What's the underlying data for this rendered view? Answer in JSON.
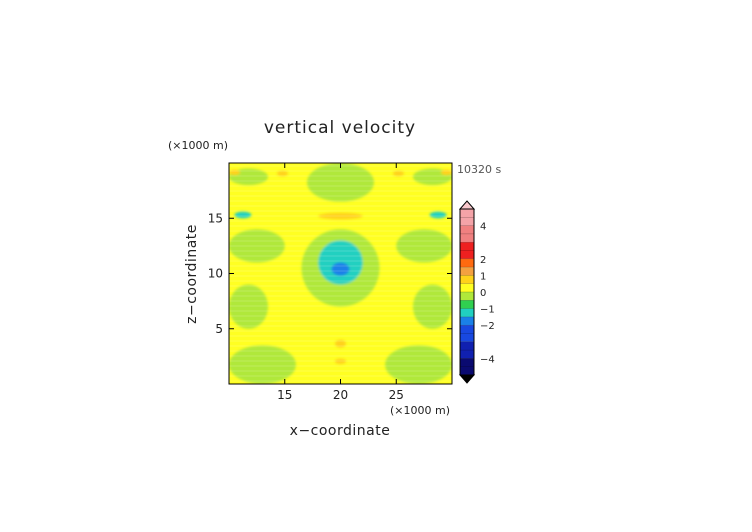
{
  "chart_data": {
    "type": "heatmap",
    "title": "vertical velocity",
    "xlabel": "x−coordinate",
    "ylabel": "z−coordinate",
    "x_unit": "(×1000 m)",
    "y_unit": "(×1000 m)",
    "time_label": "10320 s",
    "xlim": [
      10,
      30
    ],
    "ylim": [
      0,
      20
    ],
    "xticks": [
      15,
      20,
      25
    ],
    "yticks": [
      5,
      10,
      15
    ],
    "colorbar": {
      "ticks": [
        {
          "value": 4,
          "label": "4"
        },
        {
          "value": 2,
          "label": "2"
        },
        {
          "value": 1,
          "label": "1"
        },
        {
          "value": 0,
          "label": "0"
        },
        {
          "value": -1,
          "label": "−1"
        },
        {
          "value": -2,
          "label": "−2"
        },
        {
          "value": -4,
          "label": "−4"
        }
      ],
      "bands": [
        {
          "lo": 4,
          "hi": 5,
          "color": "#f4a3a8"
        },
        {
          "lo": 3,
          "hi": 4,
          "color": "#f08080"
        },
        {
          "lo": 2,
          "hi": 3,
          "color": "#ee2020"
        },
        {
          "lo": 1.5,
          "hi": 2,
          "color": "#ff6a10"
        },
        {
          "lo": 1,
          "hi": 1.5,
          "color": "#f4a040"
        },
        {
          "lo": 0.5,
          "hi": 1,
          "color": "#ffd21a"
        },
        {
          "lo": 0,
          "hi": 0.5,
          "color": "#ffff22"
        },
        {
          "lo": -0.5,
          "hi": 0,
          "color": "#b0e83a"
        },
        {
          "lo": -1,
          "hi": -0.5,
          "color": "#30d050"
        },
        {
          "lo": -1.5,
          "hi": -1,
          "color": "#20d0c0"
        },
        {
          "lo": -2,
          "hi": -1.5,
          "color": "#1a80e8"
        },
        {
          "lo": -3,
          "hi": -2,
          "color": "#1848e0"
        },
        {
          "lo": -4,
          "hi": -3,
          "color": "#1020b0"
        },
        {
          "lo": -5,
          "hi": -4,
          "color": "#0a0a70"
        }
      ],
      "over_color": "#f8c8cc",
      "under_color": "#000000"
    },
    "field": {
      "colors": {
        "positive": "#ffff22",
        "slight_negative": "#b0e83a",
        "weak_positive_spot": "#f4a040",
        "moderate_negative": "#20d0c0",
        "strong_negative": "#1a80e8"
      },
      "regions": [
        {
          "feature": "left_band_upper",
          "level": -0.3,
          "x": [
            10,
            13.5
          ],
          "y": [
            18,
            19.5
          ]
        },
        {
          "feature": "right_band_upper",
          "level": -0.3,
          "x": [
            26.5,
            30
          ],
          "y": [
            18,
            19.5
          ]
        },
        {
          "feature": "top_center_column",
          "level": -0.3,
          "x": [
            17,
            23
          ],
          "y": [
            16.5,
            20
          ]
        },
        {
          "feature": "left_lobe_mid",
          "level": -0.3,
          "x": [
            10,
            15
          ],
          "y": [
            11,
            14
          ]
        },
        {
          "feature": "right_lobe_mid",
          "level": -0.3,
          "x": [
            25,
            30
          ],
          "y": [
            11,
            14
          ]
        },
        {
          "feature": "left_lobe_low",
          "level": -0.3,
          "x": [
            10,
            13.5
          ],
          "y": [
            5,
            9
          ]
        },
        {
          "feature": "right_lobe_low",
          "level": -0.3,
          "x": [
            26.5,
            30
          ],
          "y": [
            5,
            9
          ]
        },
        {
          "feature": "left_bottom",
          "level": -0.3,
          "x": [
            10,
            16
          ],
          "y": [
            0,
            3.5
          ]
        },
        {
          "feature": "right_bottom",
          "level": -0.3,
          "x": [
            24,
            30
          ],
          "y": [
            0,
            3.5
          ]
        },
        {
          "feature": "central_updraft_outer",
          "level": -0.3,
          "x": [
            16.5,
            23.5
          ],
          "y": [
            7,
            14
          ]
        },
        {
          "feature": "central_updraft_core",
          "level": -1.2,
          "x": [
            18,
            22
          ],
          "y": [
            9,
            13
          ]
        },
        {
          "feature": "central_minimum",
          "level": -1.8,
          "x": [
            19.2,
            20.8
          ],
          "y": [
            9.8,
            11
          ]
        },
        {
          "feature": "edge_spot_left",
          "level": -1.2,
          "x": [
            10.5,
            12
          ],
          "y": [
            15,
            15.6
          ]
        },
        {
          "feature": "edge_spot_right",
          "level": -1.2,
          "x": [
            28,
            29.5
          ],
          "y": [
            15,
            15.6
          ]
        },
        {
          "feature": "warm_bar_upper",
          "level": 0.7,
          "x": [
            18,
            22
          ],
          "y": [
            14.9,
            15.5
          ]
        },
        {
          "feature": "warm_spot_top_left",
          "level": 0.7,
          "x": [
            10,
            11
          ],
          "y": [
            18.9,
            19.4
          ]
        },
        {
          "feature": "warm_spot_top_right",
          "level": 0.7,
          "x": [
            29,
            30
          ],
          "y": [
            18.9,
            19.4
          ]
        },
        {
          "feature": "warm_spot_top_mid",
          "level": 0.7,
          "x": [
            14.3,
            15.3
          ],
          "y": [
            18.8,
            19.3
          ]
        },
        {
          "feature": "warm_spot_top_mid_right",
          "level": 0.7,
          "x": [
            24.7,
            25.7
          ],
          "y": [
            18.8,
            19.3
          ]
        },
        {
          "feature": "warm_spot_low",
          "level": 0.7,
          "x": [
            19.5,
            20.5
          ],
          "y": [
            3.3,
            4
          ]
        },
        {
          "feature": "warm_spot_bottom",
          "level": 0.7,
          "x": [
            19.5,
            20.5
          ],
          "y": [
            1.8,
            2.3
          ]
        }
      ]
    }
  }
}
